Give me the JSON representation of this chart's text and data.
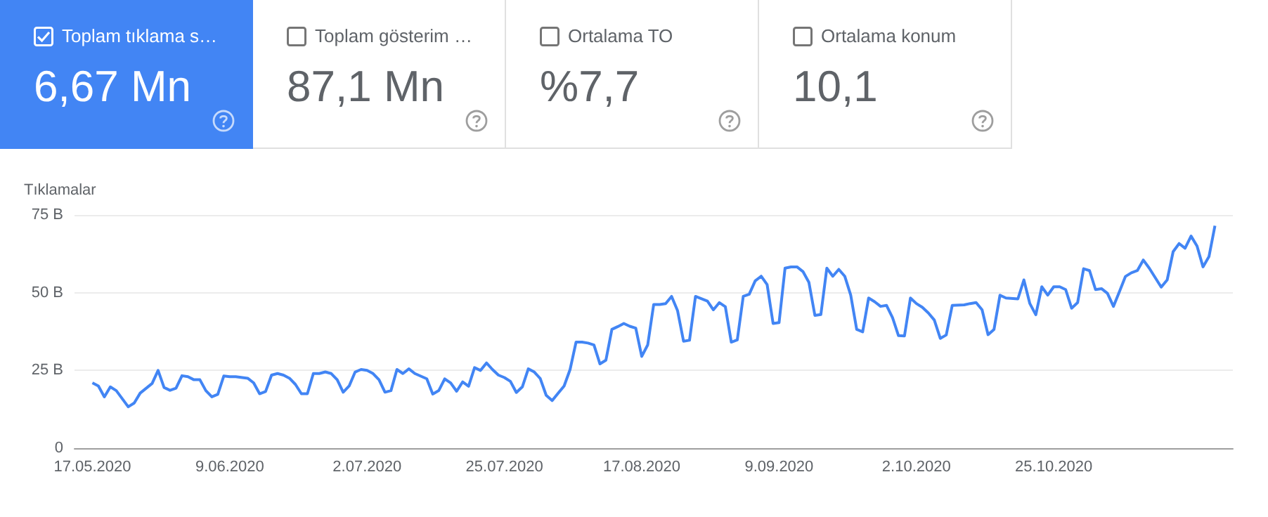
{
  "chart_data": [
    {
      "type": "other",
      "annotations": [
        "Toplam tıklama s…",
        "6,67 Mn",
        "Toplam gösterim …",
        "87,1 Mn",
        "Ortalama TO",
        "%7,7",
        "Ortalama konum",
        "10,1"
      ]
    },
    {
      "type": "line",
      "ylabel": "Tıklamalar",
      "color": "#4285f4",
      "marker": "none",
      "grid": "y",
      "xlim": [
        "2020-05-14",
        "2020-11-24"
      ],
      "xticks": [
        {
          "value": "2020-05-17",
          "label": "17.05.2020"
        },
        {
          "value": "2020-06-09",
          "label": "9.06.2020"
        },
        {
          "value": "2020-07-02",
          "label": "2.07.2020"
        },
        {
          "value": "2020-07-25",
          "label": "25.07.2020"
        },
        {
          "value": "2020-08-17",
          "label": "17.08.2020"
        },
        {
          "value": "2020-09-09",
          "label": "9.09.2020"
        },
        {
          "value": "2020-10-02",
          "label": "2.10.2020"
        },
        {
          "value": "2020-10-25",
          "label": "25.10.2020"
        }
      ],
      "ylim": [
        0,
        75
      ],
      "yticks": [
        0,
        {
          "value": 25,
          "label": "25 B"
        },
        {
          "value": 50,
          "label": "50 B"
        },
        {
          "value": 75,
          "label": "75 B"
        }
      ],
      "x": [
        "2020-05-17",
        "2020-05-18",
        "2020-05-19",
        "2020-05-20",
        "2020-05-21",
        "2020-05-23",
        "2020-05-24",
        "2020-05-25",
        "2020-05-27",
        "2020-05-28",
        "2020-05-29",
        "2020-05-30",
        "2020-05-31",
        "2020-06-01",
        "2020-06-02",
        "2020-06-03",
        "2020-06-04",
        "2020-06-05",
        "2020-06-06",
        "2020-06-07",
        "2020-06-08",
        "2020-06-09",
        "2020-06-10",
        "2020-06-12",
        "2020-06-13",
        "2020-06-14",
        "2020-06-15",
        "2020-06-16",
        "2020-06-17",
        "2020-06-18",
        "2020-06-19",
        "2020-06-20",
        "2020-06-21",
        "2020-06-22",
        "2020-06-23",
        "2020-06-24",
        "2020-06-25",
        "2020-06-26",
        "2020-06-27",
        "2020-06-28",
        "2020-06-29",
        "2020-06-30",
        "2020-07-01",
        "2020-07-02",
        "2020-07-03",
        "2020-07-04",
        "2020-07-05",
        "2020-07-06",
        "2020-07-07",
        "2020-07-08",
        "2020-07-09",
        "2020-07-10",
        "2020-07-12",
        "2020-07-13",
        "2020-07-14",
        "2020-07-15",
        "2020-07-16",
        "2020-07-17",
        "2020-07-18",
        "2020-07-19",
        "2020-07-20",
        "2020-07-21",
        "2020-07-22",
        "2020-07-23",
        "2020-07-24",
        "2020-07-25",
        "2020-07-26",
        "2020-07-27",
        "2020-07-28",
        "2020-07-29",
        "2020-07-30",
        "2020-07-31",
        "2020-08-01",
        "2020-08-02",
        "2020-08-03",
        "2020-08-04",
        "2020-08-05",
        "2020-08-06",
        "2020-08-07",
        "2020-08-08",
        "2020-08-09",
        "2020-08-10",
        "2020-08-11",
        "2020-08-12",
        "2020-08-13",
        "2020-08-14",
        "2020-08-15",
        "2020-08-16",
        "2020-08-17",
        "2020-08-18",
        "2020-08-19",
        "2020-08-20",
        "2020-08-21",
        "2020-08-22",
        "2020-08-23",
        "2020-08-24",
        "2020-08-25",
        "2020-08-26",
        "2020-08-28",
        "2020-08-29",
        "2020-08-30",
        "2020-08-31",
        "2020-09-01",
        "2020-09-02",
        "2020-09-03",
        "2020-09-04",
        "2020-09-05",
        "2020-09-06",
        "2020-09-07",
        "2020-09-08",
        "2020-09-09",
        "2020-09-10",
        "2020-09-11",
        "2020-09-12",
        "2020-09-13",
        "2020-09-14",
        "2020-09-15",
        "2020-09-16",
        "2020-09-17",
        "2020-09-18",
        "2020-09-19",
        "2020-09-20",
        "2020-09-21",
        "2020-09-22",
        "2020-09-23",
        "2020-09-24",
        "2020-09-25",
        "2020-09-26",
        "2020-09-27",
        "2020-09-28",
        "2020-09-29",
        "2020-09-30",
        "2020-10-01",
        "2020-10-02",
        "2020-10-03",
        "2020-10-04",
        "2020-10-05",
        "2020-10-06",
        "2020-10-07",
        "2020-10-08",
        "2020-10-10",
        "2020-10-11",
        "2020-10-12",
        "2020-10-13",
        "2020-10-14",
        "2020-10-15",
        "2020-10-16",
        "2020-10-17",
        "2020-10-19",
        "2020-10-20",
        "2020-10-21",
        "2020-10-22",
        "2020-10-23",
        "2020-10-24",
        "2020-10-25",
        "2020-10-26",
        "2020-10-27",
        "2020-10-28",
        "2020-10-29",
        "2020-10-30",
        "2020-10-31",
        "2020-11-01",
        "2020-11-02",
        "2020-11-03",
        "2020-11-04",
        "2020-11-05",
        "2020-11-06",
        "2020-11-07",
        "2020-11-08",
        "2020-11-09",
        "2020-11-10",
        "2020-11-12",
        "2020-11-13",
        "2020-11-14",
        "2020-11-15",
        "2020-11-16",
        "2020-11-17",
        "2020-11-18",
        "2020-11-19",
        "2020-11-20",
        "2020-11-21"
      ],
      "values": [
        21,
        20,
        16.5,
        19.7,
        18.5,
        13.3,
        14.5,
        17.7,
        20.8,
        25,
        19.5,
        18.6,
        19.3,
        23.3,
        23,
        22,
        22,
        18.5,
        16.5,
        17.3,
        23.2,
        23,
        23,
        22.5,
        21,
        17.5,
        18.2,
        23.5,
        24,
        23.5,
        22.5,
        20.5,
        17.5,
        17.5,
        24,
        24,
        24.5,
        24,
        22,
        18,
        20,
        24.5,
        25.3,
        25,
        24,
        22,
        18,
        18.5,
        25.3,
        24,
        25.5,
        24,
        22.3,
        17.4,
        18.5,
        22.3,
        21,
        18.3,
        21.3,
        19.9,
        25.9,
        25,
        27.4,
        25.3,
        23.5,
        22.7,
        21.5,
        17.9,
        19.7,
        25.5,
        24.5,
        22.4,
        17,
        15.3,
        17.7,
        20,
        25.3,
        34.1,
        34.1,
        33.8,
        33.2,
        27.1,
        28.3,
        38.2,
        39.1,
        40.1,
        39.2,
        38.6,
        29.5,
        33.2,
        46.2,
        46.2,
        46.5,
        48.8,
        44.2,
        34.4,
        34.7,
        48.8,
        47.3,
        44.5,
        46.8,
        45.5,
        34.1,
        34.8,
        48.8,
        49.5,
        53.8,
        55.3,
        52.6,
        40.1,
        40.4,
        57.9,
        58.3,
        58.3,
        56.8,
        53.3,
        42.7,
        43,
        57.9,
        55.3,
        57.5,
        55.3,
        49.2,
        38.2,
        37.4,
        48.3,
        47.1,
        45.6,
        45.9,
        42,
        36.2,
        36.1,
        48.3,
        46.5,
        45.3,
        43.5,
        41.2,
        35.3,
        36.4,
        45.9,
        46.1,
        46.5,
        46.8,
        44.5,
        36.5,
        38.2,
        49.2,
        48.3,
        48,
        54.1,
        46.5,
        42.9,
        51.9,
        49.2,
        51.9,
        51.9,
        51,
        45,
        46.8,
        57.7,
        57.1,
        51,
        51.3,
        49.8,
        45.6,
        50.3,
        55.2,
        56.4,
        57.1,
        60.5,
        57.9,
        51.8,
        54.1,
        63.2,
        65.8,
        64.3,
        68.2,
        65,
        58.3,
        61.6,
        71.5
      ]
    }
  ]
}
